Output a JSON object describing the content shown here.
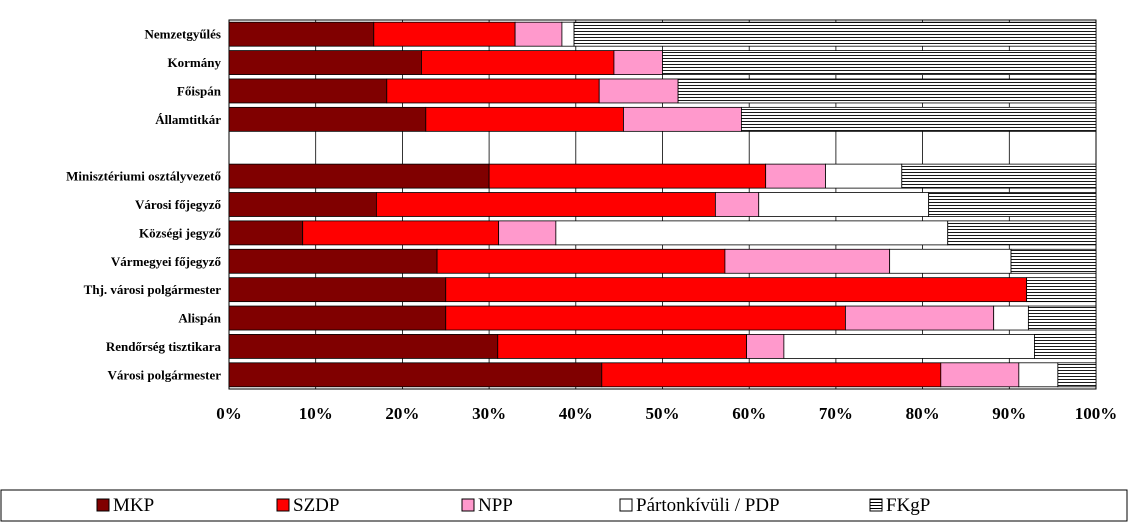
{
  "chart_data": {
    "type": "bar",
    "orientation": "horizontal",
    "stacked": true,
    "percent": true,
    "categories": [
      "Nemzetgyűlés",
      "Kormány",
      "Főispán",
      "Államtitkár",
      "",
      "Minisztériumi osztályvezető",
      "Városi főjegyző",
      "Községi jegyző",
      "Vármegyei főjegyző",
      "Thj. városi polgármester",
      "Alispán",
      "Rendőrség tisztikara",
      "Városi polgármester"
    ],
    "series": [
      {
        "name": "MKP",
        "color": "#800000",
        "pattern": "solid",
        "values": [
          16.7,
          22.2,
          18.2,
          22.7,
          null,
          30.0,
          17.0,
          8.5,
          24.0,
          25.0,
          25.0,
          31.0,
          43.0
        ]
      },
      {
        "name": "SZDP",
        "color": "#ff0000",
        "pattern": "solid",
        "values": [
          16.3,
          22.2,
          24.5,
          22.8,
          null,
          31.9,
          39.1,
          22.6,
          33.2,
          67.0,
          46.1,
          28.7,
          39.1
        ]
      },
      {
        "name": "NPP",
        "color": "#ff99cc",
        "pattern": "solid",
        "values": [
          5.4,
          5.6,
          9.1,
          13.6,
          null,
          6.9,
          5.0,
          6.6,
          19.0,
          0,
          17.1,
          4.3,
          9.0
        ]
      },
      {
        "name": "Pártonkívüli / PDP",
        "color": "#ffffff",
        "pattern": "solid",
        "values": [
          1.4,
          0,
          0,
          0,
          null,
          8.8,
          19.6,
          45.2,
          14.0,
          0,
          4.0,
          28.9,
          4.5
        ]
      },
      {
        "name": "FKgP",
        "color": "#ffffff",
        "pattern": "horizontal-lines",
        "values": [
          60.2,
          50.0,
          48.2,
          40.9,
          null,
          22.4,
          19.3,
          17.1,
          9.8,
          8.0,
          7.8,
          7.1,
          4.4
        ]
      }
    ],
    "xlim": [
      0,
      100
    ],
    "x_ticks": [
      "0%",
      "10%",
      "20%",
      "30%",
      "40%",
      "50%",
      "60%",
      "70%",
      "80%",
      "90%",
      "100%"
    ],
    "grid": "vertical",
    "legend_position": "bottom",
    "title": "",
    "xlabel": "",
    "ylabel": ""
  }
}
